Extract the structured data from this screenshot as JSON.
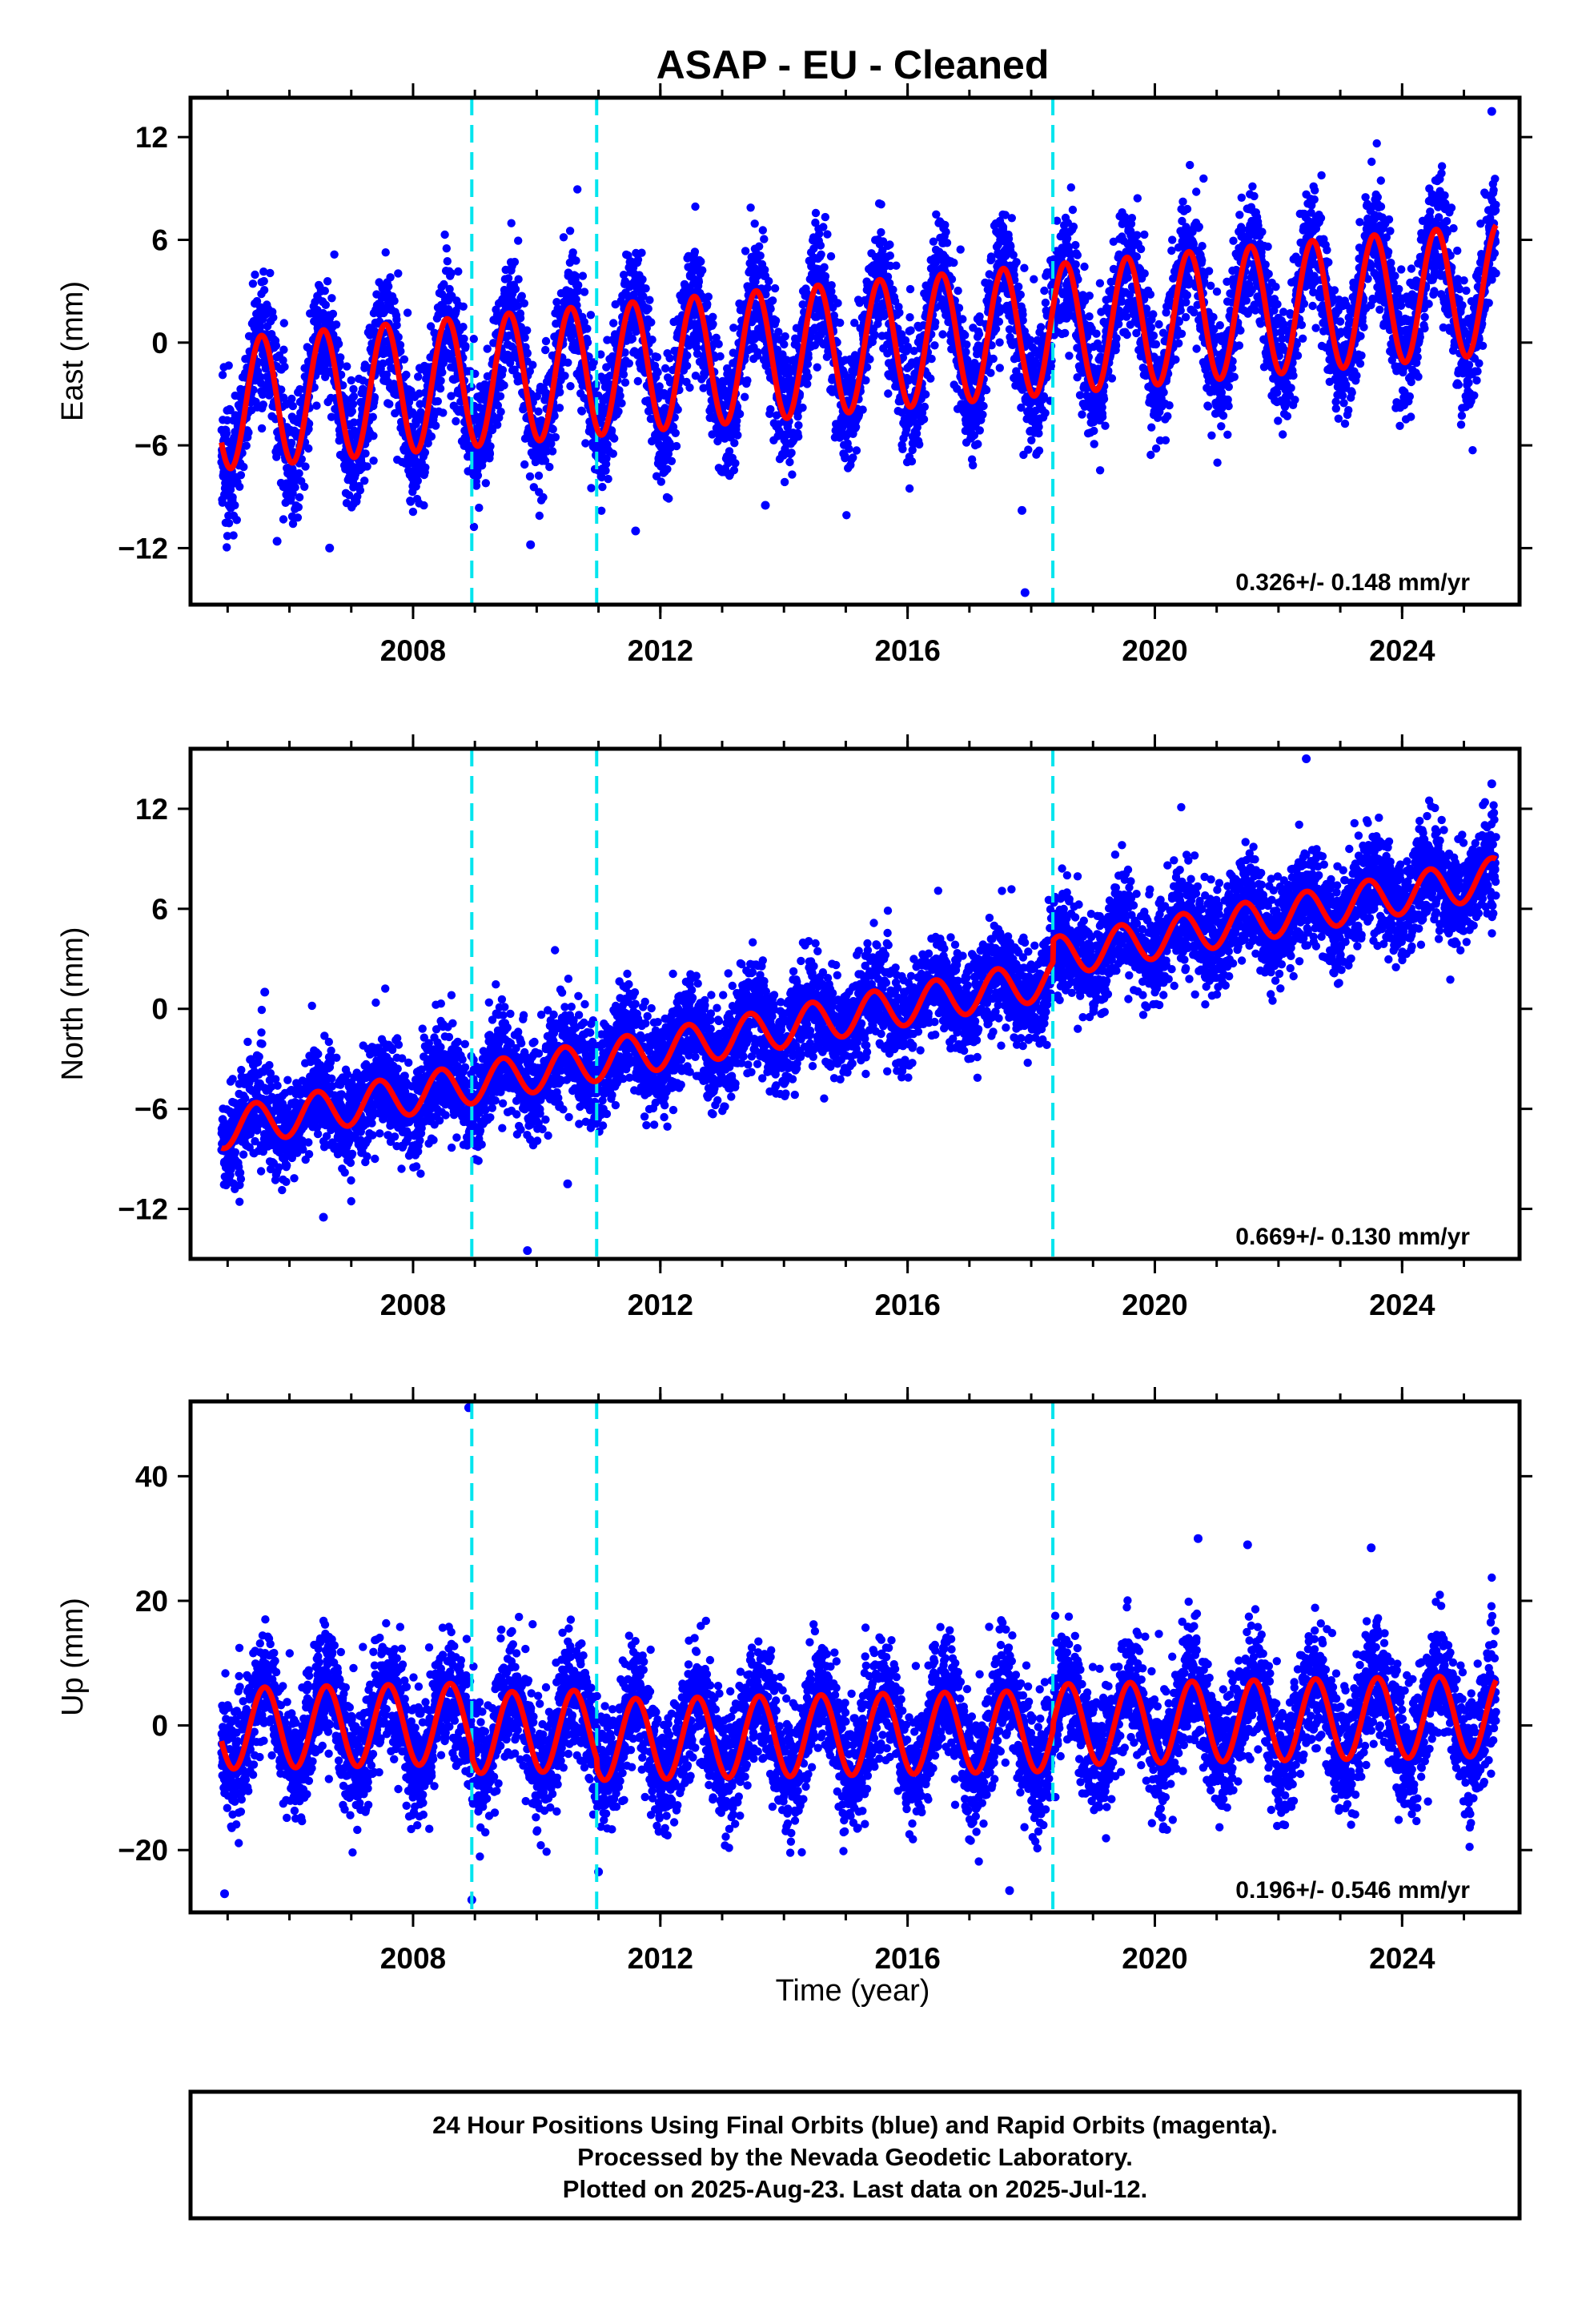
{
  "title": "ASAP  - EU - Cleaned",
  "x_axis_label": "Time (year)",
  "footer": {
    "lines": [
      "24 Hour Positions Using Final Orbits (blue) and Rapid Orbits (magenta).",
      "Processed by the Nevada Geodetic Laboratory.",
      "Plotted on 2025-Aug-23. Last data on 2025-Jul-12."
    ]
  },
  "colors": {
    "points": "#0000ff",
    "model": "#ff0000",
    "breaks": "#00e5ee",
    "frame": "#000000"
  },
  "chart_data": [
    {
      "type": "scatter",
      "ylabel": "East (mm)",
      "velocity_label": "0.326+/- 0.148 mm/yr",
      "xlim": [
        2004.4,
        2025.9
      ],
      "ylim": [
        -15.3,
        14.3
      ],
      "xticks": [
        2008,
        2012,
        2016,
        2020,
        2024
      ],
      "yticks": [
        -12,
        -6,
        0,
        6,
        12
      ],
      "break_epochs": [
        2008.95,
        2010.97,
        2018.35
      ],
      "data_start": 2004.9,
      "data_end": 2025.52,
      "model": {
        "rate_mm_per_yr": 0.326,
        "value_at_start": -3.6,
        "annual_amplitude": 3.8,
        "annual_peak": 0.55,
        "offsets": [
          0.0,
          0.0,
          0.0
        ]
      },
      "scatter_sd": 1.8,
      "outliers": [
        [
          2025.45,
          13.5
        ],
        [
          2017.9,
          -14.6
        ],
        [
          2017.85,
          -9.8
        ],
        [
          2005.8,
          -11.6
        ],
        [
          2006.65,
          -12.0
        ],
        [
          2009.9,
          -11.8
        ],
        [
          2011.6,
          -11.0
        ],
        [
          2013.7,
          -9.5
        ]
      ]
    },
    {
      "type": "scatter",
      "ylabel": "North (mm)",
      "velocity_label": "0.669+/- 0.130 mm/yr",
      "xlim": [
        2004.4,
        2025.9
      ],
      "ylim": [
        -15.0,
        15.6
      ],
      "xticks": [
        2008,
        2012,
        2016,
        2020,
        2024
      ],
      "yticks": [
        -12,
        -6,
        0,
        6,
        12
      ],
      "break_epochs": [
        2008.95,
        2010.97,
        2018.35
      ],
      "data_start": 2004.9,
      "data_end": 2025.52,
      "model": {
        "rate_mm_per_yr": 0.669,
        "value_at_start": -7.2,
        "annual_amplitude": 1.2,
        "annual_peak": 0.45,
        "offsets": [
          0.0,
          0.0,
          1.3
        ]
      },
      "scatter_sd": 1.5,
      "outliers": [
        [
          2022.45,
          15.0
        ],
        [
          2025.45,
          13.5
        ],
        [
          2009.85,
          -14.5
        ],
        [
          2006.55,
          -12.5
        ],
        [
          2005.6,
          1.0
        ],
        [
          2010.5,
          -10.5
        ]
      ]
    },
    {
      "type": "scatter",
      "ylabel": "Up (mm)",
      "velocity_label": "0.196+/- 0.546 mm/yr",
      "xlim": [
        2004.4,
        2025.9
      ],
      "ylim": [
        -30.0,
        52.0
      ],
      "xticks": [
        2008,
        2012,
        2016,
        2020,
        2024
      ],
      "yticks": [
        -20,
        0,
        20,
        40
      ],
      "break_epochs": [
        2008.95,
        2010.97,
        2018.35
      ],
      "data_start": 2004.9,
      "data_end": 2025.52,
      "model": {
        "rate_mm_per_yr": 0.196,
        "value_at_start": -0.5,
        "annual_amplitude": 6.5,
        "annual_peak": 0.6,
        "offsets": [
          -1.5,
          -1.5,
          1.0
        ]
      },
      "scatter_sd": 4.8,
      "outliers": [
        [
          2008.9,
          51.0
        ],
        [
          2008.95,
          -28.0
        ],
        [
          2004.95,
          -27.0
        ],
        [
          2017.65,
          -26.5
        ],
        [
          2021.5,
          29.0
        ],
        [
          2023.5,
          28.5
        ],
        [
          2020.7,
          30.0
        ],
        [
          2011.0,
          -23.5
        ]
      ]
    }
  ]
}
